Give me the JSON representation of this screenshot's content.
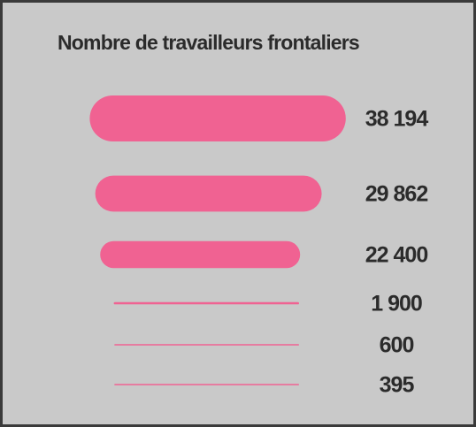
{
  "chart_data": {
    "type": "bar",
    "title": "Nombre de travailleurs frontaliers",
    "values": [
      38194,
      29862,
      22400,
      1900,
      600,
      395
    ],
    "value_labels": [
      "38 194",
      "29 862",
      "22 400",
      "1 900",
      "600",
      "395"
    ],
    "color": "#f06292"
  }
}
